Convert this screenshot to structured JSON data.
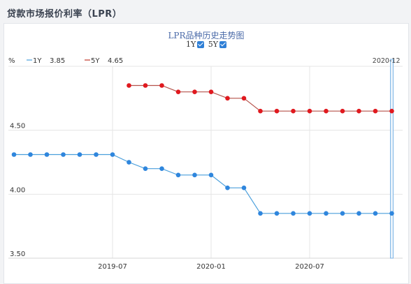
{
  "page": {
    "title": "贷款市场报价利率（LPR）"
  },
  "chart_header": {
    "title": "LPR品种历史走势图",
    "toggle_1y": "1Y",
    "toggle_5y": "5Y"
  },
  "legend": {
    "unit": "%",
    "items": [
      {
        "name": "1Y",
        "value": "3.85",
        "color": "#4a9fdc"
      },
      {
        "name": "5Y",
        "value": "4.65",
        "color": "#c0392b"
      }
    ]
  },
  "cursor_label": "2020-12",
  "chart_data": {
    "type": "line",
    "x": [
      "2019-01",
      "2019-02",
      "2019-03",
      "2019-04",
      "2019-05",
      "2019-06",
      "2019-07",
      "2019-08",
      "2019-09",
      "2019-10",
      "2019-11",
      "2019-12",
      "2020-01",
      "2020-02",
      "2020-03",
      "2020-04",
      "2020-05",
      "2020-06",
      "2020-07",
      "2020-08",
      "2020-09",
      "2020-10",
      "2020-11",
      "2020-12"
    ],
    "x_ticks": [
      "2019-07",
      "2020-01",
      "2020-07"
    ],
    "y_ticks": [
      "3.50",
      "4.00",
      "4.50"
    ],
    "ylim": [
      3.5,
      5.0
    ],
    "grid": true,
    "series": [
      {
        "name": "1Y",
        "color": "#4a9fdc",
        "marker_color": "#2f86dd",
        "values": [
          4.31,
          4.31,
          4.31,
          4.31,
          4.31,
          4.31,
          4.31,
          4.25,
          4.2,
          4.2,
          4.15,
          4.15,
          4.15,
          4.05,
          4.05,
          3.85,
          3.85,
          3.85,
          3.85,
          3.85,
          3.85,
          3.85,
          3.85,
          3.85
        ]
      },
      {
        "name": "5Y",
        "color": "#b5524a",
        "marker_color": "#e0191f",
        "values": [
          null,
          null,
          null,
          null,
          null,
          null,
          null,
          4.85,
          4.85,
          4.85,
          4.8,
          4.8,
          4.8,
          4.75,
          4.75,
          4.65,
          4.65,
          4.65,
          4.65,
          4.65,
          4.65,
          4.65,
          4.65,
          4.65
        ]
      }
    ]
  }
}
